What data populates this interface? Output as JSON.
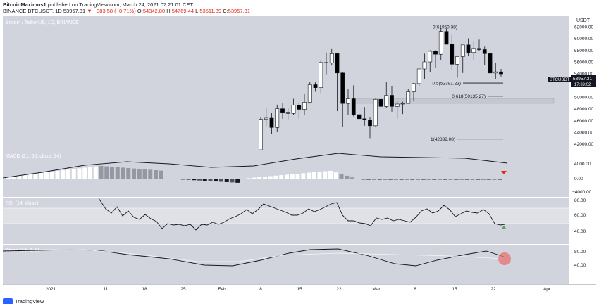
{
  "header": {
    "author": "BitcoinMaximus1",
    "published_text": "published on TradingView.com, March 24, 2021 07:21:01 CET",
    "symbol": "BINANCE:BTCUSDT, 1D",
    "last": "53957.31",
    "change": "▼ −383.58 (−0.71%)",
    "ohlc": {
      "o_label": "O:",
      "o": "54342.80",
      "h_label": "H:",
      "h": "54769.44",
      "l_label": "L:",
      "l": "53511.39",
      "c_label": "C:",
      "c": "53957.31"
    }
  },
  "main_pane": {
    "title": "Bitcoin / TetherUS, 1D, BINANCE",
    "currency": "USDT",
    "price_tag": {
      "label": "BTCUSDT",
      "value": "53957.31",
      "countdown": "17:39:02"
    }
  },
  "fib_levels": [
    {
      "label": "0(61950.38)",
      "price": 61950.38
    },
    {
      "label": "0.5(52391.23)",
      "price": 52391.23
    },
    {
      "label": "0.618(50135.27)",
      "price": 50135.27
    },
    {
      "label": "1(42832.08)",
      "price": 42832.08
    }
  ],
  "macd": {
    "title": "MACD (21, 50, close, 24)",
    "ticks": [
      "4000.00",
      "0.00",
      "−4000.00"
    ],
    "marker_color": "#e0281b"
  },
  "rsi": {
    "title": "RSI (14, close)",
    "ticks": [
      "80.00",
      "60.00",
      "40.00"
    ],
    "marker_color": "#4caf50"
  },
  "stoch": {
    "title": "Stoch (14, 3, 3)",
    "ticks": [
      "80.00",
      "40.00"
    ],
    "highlight_color": "#e57373"
  },
  "colors": {
    "pane_bg": "#d1d4dc",
    "up": "#ffffff",
    "down": "#000000",
    "fib_line": "#131722"
  },
  "footer": {
    "brand": "TradingView"
  },
  "chart_data": {
    "type": "candlestick",
    "title": "Bitcoin / TetherUS, 1D, BINANCE",
    "x_ticks": [
      "2021",
      "11",
      "18",
      "25",
      "Feb",
      "8",
      "15",
      "22",
      "Mar",
      "8",
      "15",
      "22",
      "Apr"
    ],
    "y_ticks": [
      "62000.00",
      "60000.00",
      "58000.00",
      "56000.00",
      "54000.00",
      "52000.00",
      "50000.00",
      "48000.00",
      "46000.00",
      "44000.00",
      "42000.00"
    ],
    "ylim": [
      41000,
      63800
    ],
    "candles": [
      {
        "date": "2021-02-08",
        "o": 38800,
        "h": 46600,
        "l": 38000,
        "c": 46200
      },
      {
        "date": "2021-02-09",
        "o": 46200,
        "h": 48100,
        "l": 45000,
        "c": 46400
      },
      {
        "date": "2021-02-10",
        "o": 46400,
        "h": 47300,
        "l": 43700,
        "c": 44800
      },
      {
        "date": "2021-02-11",
        "o": 44800,
        "h": 48700,
        "l": 44000,
        "c": 48000
      },
      {
        "date": "2021-02-12",
        "o": 48000,
        "h": 48900,
        "l": 46300,
        "c": 47400
      },
      {
        "date": "2021-02-13",
        "o": 47400,
        "h": 48200,
        "l": 46200,
        "c": 47200
      },
      {
        "date": "2021-02-14",
        "o": 47200,
        "h": 49700,
        "l": 47000,
        "c": 48600
      },
      {
        "date": "2021-02-15",
        "o": 48600,
        "h": 49000,
        "l": 46300,
        "c": 47900
      },
      {
        "date": "2021-02-16",
        "o": 47900,
        "h": 50600,
        "l": 47000,
        "c": 49100
      },
      {
        "date": "2021-02-17",
        "o": 49100,
        "h": 52600,
        "l": 48900,
        "c": 52100
      },
      {
        "date": "2021-02-18",
        "o": 52100,
        "h": 52500,
        "l": 50900,
        "c": 51600
      },
      {
        "date": "2021-02-19",
        "o": 51600,
        "h": 56300,
        "l": 50700,
        "c": 55900
      },
      {
        "date": "2021-02-20",
        "o": 55900,
        "h": 57600,
        "l": 53900,
        "c": 55800
      },
      {
        "date": "2021-02-21",
        "o": 55800,
        "h": 58300,
        "l": 55400,
        "c": 57400
      },
      {
        "date": "2021-02-22",
        "o": 57400,
        "h": 57500,
        "l": 47600,
        "c": 54100
      },
      {
        "date": "2021-02-23",
        "o": 54100,
        "h": 54200,
        "l": 44900,
        "c": 48900
      },
      {
        "date": "2021-02-24",
        "o": 48900,
        "h": 51300,
        "l": 47000,
        "c": 49700
      },
      {
        "date": "2021-02-25",
        "o": 49700,
        "h": 52000,
        "l": 46700,
        "c": 47000
      },
      {
        "date": "2021-02-26",
        "o": 47000,
        "h": 48300,
        "l": 44200,
        "c": 46300
      },
      {
        "date": "2021-02-27",
        "o": 46300,
        "h": 48300,
        "l": 45100,
        "c": 46100
      },
      {
        "date": "2021-02-28",
        "o": 46100,
        "h": 46500,
        "l": 43000,
        "c": 45100
      },
      {
        "date": "2021-03-01",
        "o": 45100,
        "h": 49700,
        "l": 45000,
        "c": 49600
      },
      {
        "date": "2021-03-02",
        "o": 49600,
        "h": 50200,
        "l": 47000,
        "c": 48400
      },
      {
        "date": "2021-03-03",
        "o": 48400,
        "h": 52600,
        "l": 48100,
        "c": 50300
      },
      {
        "date": "2021-03-04",
        "o": 50300,
        "h": 51800,
        "l": 47500,
        "c": 48400
      },
      {
        "date": "2021-03-05",
        "o": 48400,
        "h": 49400,
        "l": 46300,
        "c": 48800
      },
      {
        "date": "2021-03-06",
        "o": 48800,
        "h": 49200,
        "l": 47100,
        "c": 48900
      },
      {
        "date": "2021-03-07",
        "o": 48900,
        "h": 51400,
        "l": 48900,
        "c": 50900
      },
      {
        "date": "2021-03-08",
        "o": 50900,
        "h": 52400,
        "l": 49300,
        "c": 52300
      },
      {
        "date": "2021-03-09",
        "o": 52300,
        "h": 54900,
        "l": 51800,
        "c": 54800
      },
      {
        "date": "2021-03-10",
        "o": 54800,
        "h": 57400,
        "l": 53000,
        "c": 56000
      },
      {
        "date": "2021-03-11",
        "o": 56000,
        "h": 58000,
        "l": 54300,
        "c": 57800
      },
      {
        "date": "2021-03-12",
        "o": 57800,
        "h": 58000,
        "l": 55000,
        "c": 57300
      },
      {
        "date": "2021-03-13",
        "o": 57300,
        "h": 61700,
        "l": 56300,
        "c": 61200
      },
      {
        "date": "2021-03-14",
        "o": 61200,
        "h": 61700,
        "l": 59000,
        "c": 59000
      },
      {
        "date": "2021-03-15",
        "o": 59000,
        "h": 60600,
        "l": 54600,
        "c": 55600
      },
      {
        "date": "2021-03-16",
        "o": 55600,
        "h": 56900,
        "l": 53300,
        "c": 56900
      },
      {
        "date": "2021-03-17",
        "o": 56900,
        "h": 58900,
        "l": 54100,
        "c": 58900
      },
      {
        "date": "2021-03-18",
        "o": 58900,
        "h": 60000,
        "l": 57000,
        "c": 57600
      },
      {
        "date": "2021-03-19",
        "o": 57600,
        "h": 59400,
        "l": 56300,
        "c": 58300
      },
      {
        "date": "2021-03-20",
        "o": 58300,
        "h": 59800,
        "l": 57800,
        "c": 58100
      },
      {
        "date": "2021-03-21",
        "o": 58100,
        "h": 58600,
        "l": 55500,
        "c": 57400
      },
      {
        "date": "2021-03-22",
        "o": 57400,
        "h": 58400,
        "l": 53700,
        "c": 54100
      },
      {
        "date": "2021-03-23",
        "o": 54100,
        "h": 55800,
        "l": 53000,
        "c": 54300
      },
      {
        "date": "2021-03-24",
        "o": 54300,
        "h": 54800,
        "l": 53500,
        "c": 53957
      }
    ]
  }
}
